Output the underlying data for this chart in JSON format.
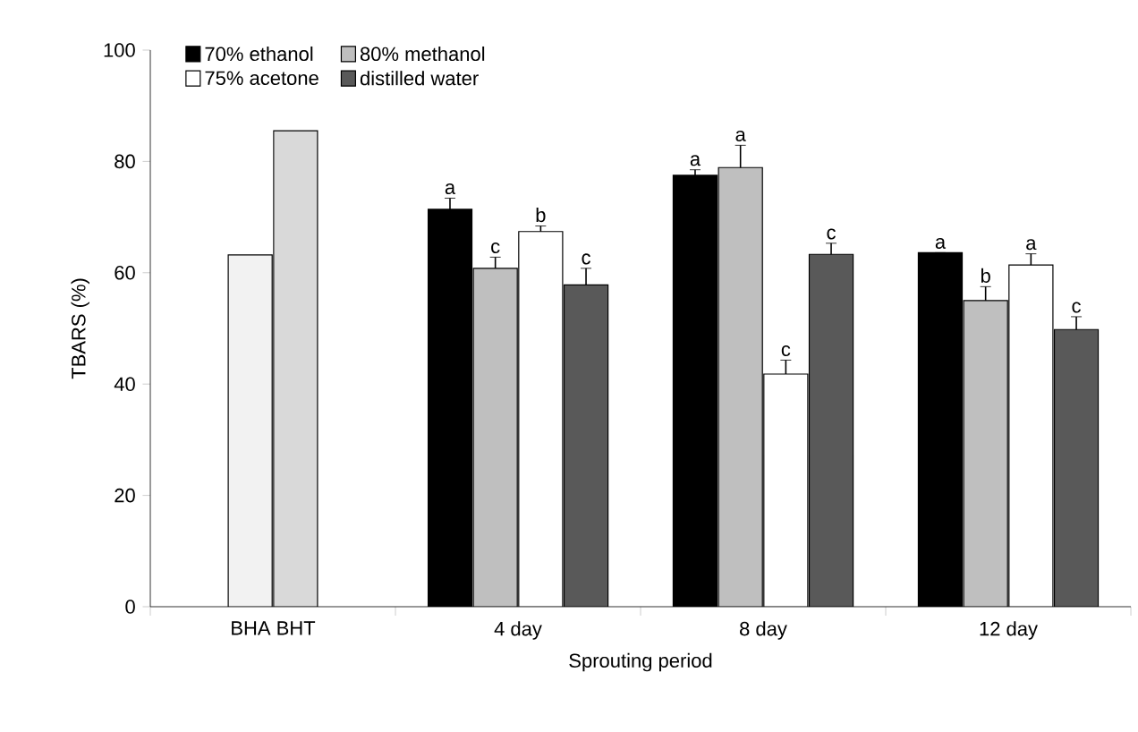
{
  "chart_data": {
    "type": "bar",
    "xlabel": "Sprouting period",
    "ylabel": "TBARS (%)",
    "categories": [
      "BHA BHT",
      "4 day",
      "8 day",
      "12 day"
    ],
    "series": [
      {
        "color": "#f2f2f2",
        "values": [
          63.2,
          null,
          null,
          null
        ]
      },
      {
        "color": "#d9d9d9",
        "values": [
          85.5,
          null,
          null,
          null
        ]
      },
      {
        "name": "70% ethanol",
        "color": "#000000",
        "values": [
          null,
          71.4,
          77.5,
          63.6
        ],
        "errors": [
          null,
          2,
          1,
          null
        ],
        "value_labels": [
          null,
          "a",
          "a",
          "a"
        ]
      },
      {
        "name": "80% methanol",
        "color": "#bfbfbf",
        "values": [
          null,
          60.8,
          78.9,
          55
        ],
        "errors": [
          null,
          2,
          4,
          2.5
        ],
        "value_labels": [
          null,
          "c",
          "a",
          "b"
        ]
      },
      {
        "name": "75% acetone",
        "color": "#ffffff",
        "values": [
          null,
          67.4,
          41.8,
          61.4
        ],
        "errors": [
          null,
          1,
          2.5,
          2
        ],
        "value_labels": [
          null,
          "b",
          "c",
          "a"
        ]
      },
      {
        "name": "distilled water",
        "color": "#595959",
        "values": [
          null,
          57.8,
          63.3,
          49.8
        ],
        "errors": [
          null,
          3,
          2,
          2.3
        ],
        "value_labels": [
          null,
          "c",
          "c",
          "c"
        ]
      }
    ],
    "ylim": [
      0,
      100
    ],
    "yticks": [
      0,
      20,
      40,
      60,
      80,
      100
    ],
    "grid": false,
    "legend": "top left"
  }
}
